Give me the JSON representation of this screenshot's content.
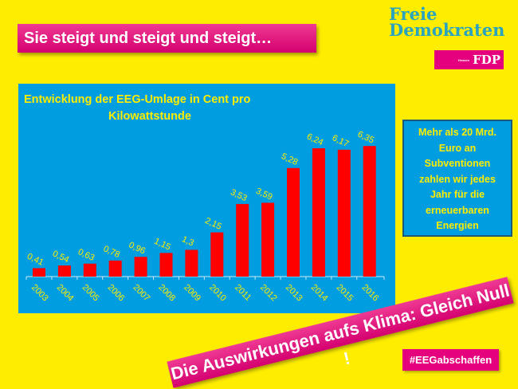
{
  "header": {
    "title": "Sie steigt und steigt und steigt…"
  },
  "logo": {
    "line1": "Freie",
    "line2": "Demokraten",
    "region": "Hessen",
    "party": "FDP"
  },
  "info_box": {
    "lines": [
      "Mehr als 20 Mrd.",
      "Euro  an",
      "Subventionen",
      "zahlen wir jedes",
      "Jahr für die",
      "erneuerbaren",
      "Energien"
    ]
  },
  "banner": {
    "text": "Die Auswirkungen aufs Klima: Gleich Null !"
  },
  "hashtag": {
    "text": "#EEGabschaffen"
  },
  "colors": {
    "background": "#ffed00",
    "chart_bg": "#009ee0",
    "bar": "#ff0000",
    "label": "#ffed00",
    "accent": "#e5007d"
  },
  "chart_data": {
    "type": "bar",
    "title_lines": [
      "Entwicklung der EEG-Umlage in Cent pro",
      "Kilowattstunde"
    ],
    "categories": [
      "2003",
      "2004",
      "2005",
      "2006",
      "2007",
      "2008",
      "2009",
      "2010",
      "2011",
      "2012",
      "2013",
      "2014",
      "2015",
      "2016"
    ],
    "values": [
      0.41,
      0.54,
      0.63,
      0.78,
      0.96,
      1.15,
      1.3,
      2.15,
      3.53,
      3.59,
      5.28,
      6.24,
      6.17,
      6.35
    ],
    "data_labels": [
      "0,41",
      "0,54",
      "0,63",
      "0,78",
      "0,96",
      "1,15",
      "1,3",
      "2,15",
      "3,53",
      "3,59",
      "5,28",
      "6,24",
      "6,17",
      "6,35"
    ],
    "xlabel": "",
    "ylabel": "",
    "ylim": [
      0,
      7
    ],
    "grid": false,
    "legend": "none"
  }
}
